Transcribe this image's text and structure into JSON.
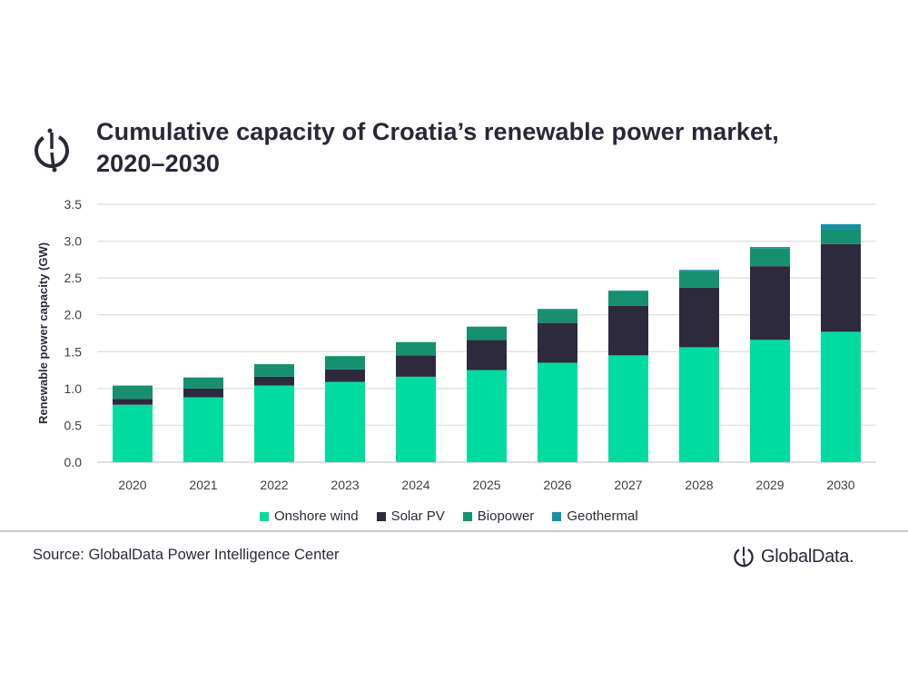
{
  "header": {
    "title_line1": "Cumulative capacity of Croatia’s renewable power market,",
    "title_line2": "2020–2030",
    "logo_icon": "globaldata-mark-icon"
  },
  "footer": {
    "source": "Source: GlobalData Power Intelligence Center",
    "brand": "GlobalData."
  },
  "chart_data": {
    "type": "bar",
    "stacked": true,
    "title": "Cumulative capacity of Croatia’s renewable power market, 2020–2030",
    "xlabel": "",
    "ylabel": "Renewable power capacity (GW)",
    "ylim": [
      0,
      3.5
    ],
    "yticks": [
      "0.0",
      "0.5",
      "1.0",
      "1.5",
      "2.0",
      "2.5",
      "3.0",
      "3.5"
    ],
    "ytick_values": [
      0,
      0.5,
      1.0,
      1.5,
      2.0,
      2.5,
      3.0,
      3.5
    ],
    "grid": true,
    "legend_position": "bottom",
    "categories": [
      "2020",
      "2021",
      "2022",
      "2023",
      "2024",
      "2025",
      "2026",
      "2027",
      "2028",
      "2029",
      "2030"
    ],
    "series": [
      {
        "name": "Onshore wind",
        "color": "#00dca0",
        "values": [
          0.78,
          0.88,
          1.04,
          1.09,
          1.16,
          1.25,
          1.35,
          1.45,
          1.56,
          1.66,
          1.77
        ]
      },
      {
        "name": "Solar PV",
        "color": "#2d2a3e",
        "values": [
          0.08,
          0.12,
          0.12,
          0.17,
          0.29,
          0.41,
          0.54,
          0.67,
          0.81,
          1.0,
          1.19
        ]
      },
      {
        "name": "Biopower",
        "color": "#16906f",
        "values": [
          0.18,
          0.15,
          0.17,
          0.18,
          0.18,
          0.18,
          0.18,
          0.2,
          0.22,
          0.24,
          0.2
        ]
      },
      {
        "name": "Geothermal",
        "color": "#178ea3",
        "values": [
          0.0,
          0.0,
          0.0,
          0.0,
          0.0,
          0.0,
          0.01,
          0.01,
          0.02,
          0.02,
          0.07
        ]
      }
    ]
  }
}
